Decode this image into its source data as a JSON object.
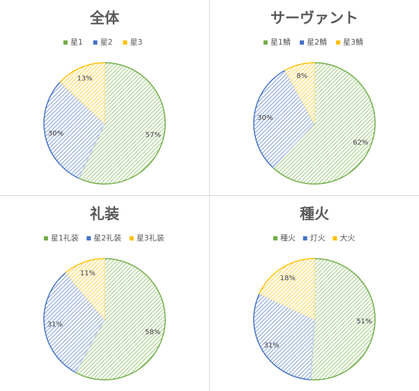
{
  "colors": {
    "green_stroke": "#70ad47",
    "blue_stroke": "#4472c4",
    "yellow_stroke": "#ffc000",
    "green_fill": "#a9d18e",
    "blue_fill": "#8faadc",
    "yellow_fill": "#ffd966",
    "text": "#595959",
    "divider": "#d9d9d9"
  },
  "chart_data": [
    {
      "type": "pie",
      "title": "全体",
      "categories": [
        "星1",
        "星2",
        "星3"
      ],
      "values": [
        57,
        30,
        13
      ],
      "labels": [
        "57%",
        "30%",
        "13%"
      ],
      "legend": "top"
    },
    {
      "type": "pie",
      "title": "サーヴァント",
      "categories": [
        "星1鯖",
        "星2鯖",
        "星3鯖"
      ],
      "values": [
        62,
        30,
        8
      ],
      "labels": [
        "62%",
        "30%",
        "8%"
      ],
      "legend": "top"
    },
    {
      "type": "pie",
      "title": "礼装",
      "categories": [
        "星1礼装",
        "星2礼装",
        "星3礼装"
      ],
      "values": [
        58,
        31,
        11
      ],
      "labels": [
        "58%",
        "31%",
        "11%"
      ],
      "legend": "top"
    },
    {
      "type": "pie",
      "title": "種火",
      "categories": [
        "種火",
        "灯火",
        "大火"
      ],
      "values": [
        51,
        31,
        18
      ],
      "labels": [
        "51%",
        "31%",
        "18%"
      ],
      "legend": "top"
    }
  ]
}
